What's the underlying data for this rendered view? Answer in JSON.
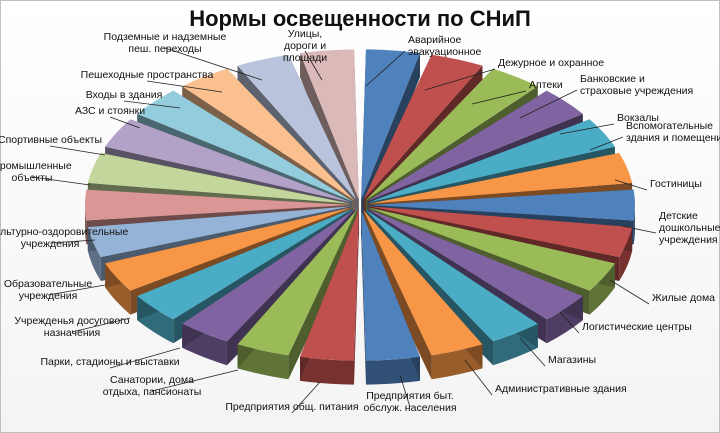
{
  "chart_data": {
    "type": "pie",
    "title": "Нормы освещенности по СНиП",
    "categories": [
      "Аварийное эвакуационное",
      "Дежурное и охранное",
      "Аптеки",
      "Банковские и страховые учреждения",
      "Вокзалы",
      "Вспомогательные здания и помещения",
      "Гостиницы",
      "Детские дошкольные учреждения",
      "Жилые дома",
      "Логистические центры",
      "Магазины",
      "Административные здания",
      "Предприятия быт. обслуж. населения",
      "Предприятия общ. питания",
      "Санатории, дома отдыха, пансионаты",
      "Парки, стадионы и выставки",
      "Учрежденья досугового назначения",
      "Образовательные учреждения",
      "Физкультурно-оздоровительные учреждения",
      "Промышленные объекты",
      "Спортивные объекты",
      "АЗС и стоянки",
      "Входы в здания",
      "Пешеходные пространства",
      "Подземные и надземные пеш. переходы",
      "Улицы, дороги и площади"
    ],
    "values": [
      1,
      1,
      1,
      1,
      1,
      1,
      1,
      1,
      1,
      1,
      1,
      1,
      1,
      1,
      1,
      1,
      1,
      1,
      1,
      1,
      1,
      1,
      1,
      1,
      1,
      1
    ],
    "exploded": true,
    "style": "3d",
    "legend": "none",
    "colors": [
      "#4f81bd",
      "#c0504d",
      "#9bbb59",
      "#8064a2",
      "#4bacc6",
      "#f79646",
      "#4f81bd",
      "#c0504d",
      "#9bbb59",
      "#8064a2",
      "#4bacc6",
      "#f79646",
      "#4f81bd",
      "#c0504d",
      "#9bbb59",
      "#8064a2",
      "#4bacc6",
      "#f79646",
      "#95b3d7",
      "#d99694",
      "#c3d69b",
      "#b2a2c7",
      "#93cddd",
      "#fac08f",
      "#b9c4dc",
      "#dcb9b9"
    ]
  }
}
